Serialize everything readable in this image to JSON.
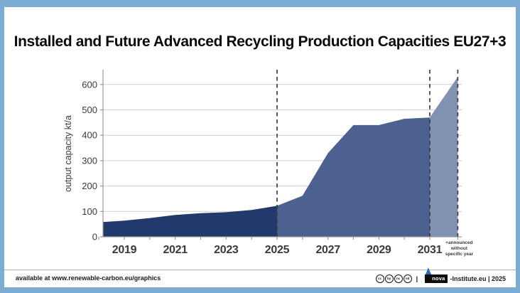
{
  "header": {
    "title": "Installed and Future Advanced Recycling Production Capacities EU27+3"
  },
  "chart_data": {
    "type": "area",
    "title": "Installed and Future Advanced Recycling Production Capacities EU27+3",
    "xlabel": "",
    "ylabel": "output capacity kt/a",
    "ylim": [
      0,
      650
    ],
    "xlim": [
      2018.15,
      2032.25
    ],
    "grid": true,
    "yticks": [
      0,
      100,
      200,
      300,
      400,
      500,
      600
    ],
    "xticks_labeled": [
      2019,
      2021,
      2023,
      2025,
      2027,
      2029,
      2031
    ],
    "xticks_minor": [
      2018,
      2019,
      2020,
      2021,
      2022,
      2023,
      2024,
      2025,
      2026,
      2027,
      2028,
      2029,
      2030,
      2031,
      2032.1
    ],
    "dashed_lines_x": [
      2025,
      2031,
      2032.1
    ],
    "extra_xtick": {
      "x": 2032.1,
      "lines": [
        "+announced",
        "without",
        "specific year"
      ]
    },
    "segments": [
      {
        "name": "installed-capacity",
        "color": "#21396d",
        "points": [
          [
            2018.15,
            58
          ],
          [
            2019,
            64
          ],
          [
            2020,
            74
          ],
          [
            2021,
            86
          ],
          [
            2022,
            93
          ],
          [
            2023,
            97
          ],
          [
            2024,
            106
          ],
          [
            2025,
            122
          ]
        ]
      },
      {
        "name": "future-capacity-2025-2031",
        "color": "#4d6190",
        "points": [
          [
            2025,
            122
          ],
          [
            2026,
            162
          ],
          [
            2027,
            330
          ],
          [
            2028,
            440
          ],
          [
            2029,
            440
          ],
          [
            2030,
            465
          ],
          [
            2031,
            470
          ]
        ]
      },
      {
        "name": "announced-without-specific-year",
        "color": "#8191b2",
        "points": [
          [
            2031,
            470
          ],
          [
            2032.1,
            630
          ]
        ]
      }
    ],
    "colors": {
      "grid": "#cfcfcf",
      "axis": "#9a9a9a",
      "dashed": "#3d3d3d",
      "tick_label": "#3a3a3a"
    }
  },
  "footer": {
    "left_text": "available at www.renewable-carbon.eu/graphics",
    "cc_icons": [
      {
        "name": "cc-icon",
        "glyph": "cc"
      },
      {
        "name": "cc-by-icon",
        "glyph": "by"
      },
      {
        "name": "cc-nc-icon",
        "glyph": "nc"
      },
      {
        "name": "cc-nd-icon",
        "glyph": "nd"
      }
    ],
    "separator": "|",
    "logo_text": "nova",
    "right_text": "-Institute.eu | 2025"
  }
}
